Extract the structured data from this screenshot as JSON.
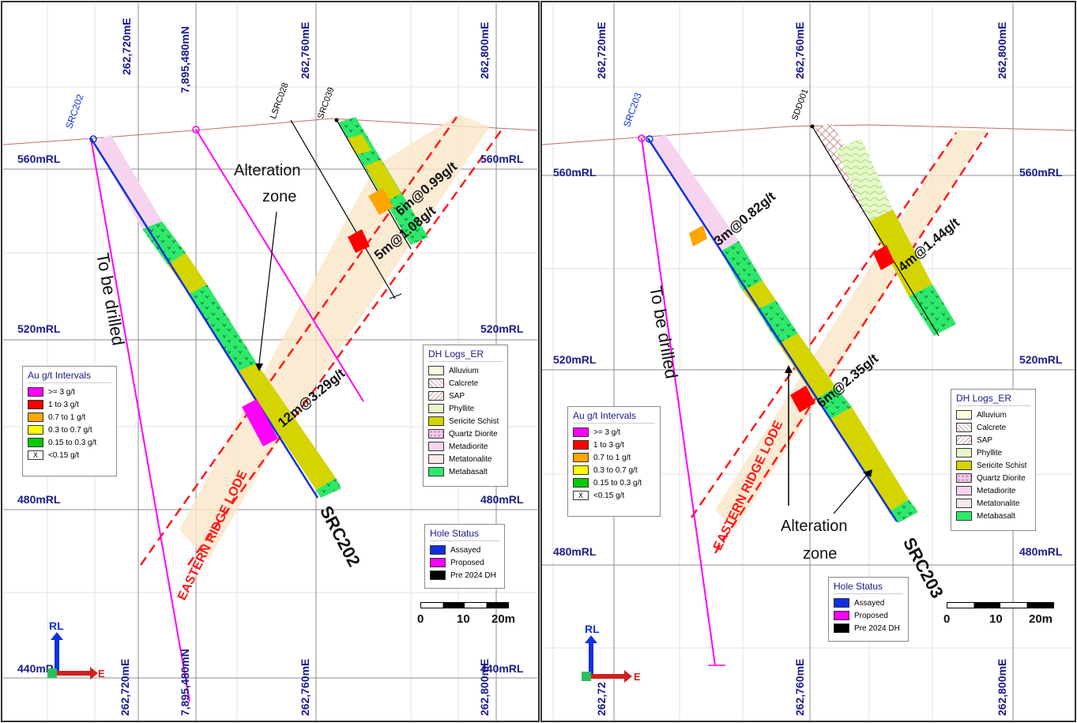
{
  "colors": {
    "axis_label": "#1a1a8c",
    "assayed": "#1030e0",
    "proposed": "#ff00ff",
    "pre2024": "#000000",
    "alteration_fill": "#fbe6c8",
    "lode_dash": "#ff1a1a",
    "sericite": "#d4d400",
    "metabasalt": "#2ee86b",
    "metadiorite": "#f6d4f0",
    "phyllite": "#e6f7c8",
    "au_3plus": "#ff00ff",
    "au_1to3": "#ff0000",
    "au_07to1": "#ffa500",
    "au_03to07": "#ffff00",
    "au_015to03": "#00cc00"
  },
  "left": {
    "top_easting": [
      "262,720mE",
      "7,895,480mN",
      "262,760mE",
      "262,800mE"
    ],
    "bottom_easting": [
      "262,720mE",
      "7,895,480mN",
      "262,760mE",
      "262,800mE"
    ],
    "rl_left": [
      "560mRL",
      "520mRL",
      "480mRL",
      "440mRL"
    ],
    "rl_right": [
      "560mRL",
      "520mRL",
      "480mRL",
      "440mRL"
    ],
    "hole_labels": {
      "src202_top": "SRC202",
      "lsrc028": "LSRC028",
      "src039": "SRC039",
      "src202_bottom": "SRC202"
    },
    "intercepts": [
      "6m@0.99g/t",
      "5m@1.08g/t",
      "12m@3.29g/t"
    ],
    "annotations": {
      "to_be_drilled": "To be drilled",
      "alteration": "Alteration",
      "zone": "zone",
      "lode": "EASTERN RIDGE LODE"
    },
    "scale": [
      "0",
      "10",
      "20m"
    ],
    "axes": {
      "rl": "RL",
      "e": "E"
    }
  },
  "right": {
    "top_easting": [
      "262,720mE",
      "262,760mE",
      "262,800mE"
    ],
    "bottom_easting": [
      "262,72",
      "262,760mE",
      "262,800mE"
    ],
    "rl_left": [
      "560mRL",
      "520mRL",
      "480mRL"
    ],
    "rl_right": [
      "560mRL",
      "520mRL",
      "480mRL"
    ],
    "hole_labels": {
      "src203_top": "SRC203",
      "sdd001": "SDD001",
      "src203_bottom": "SRC203"
    },
    "intercepts": [
      "3m@0.82g/t",
      "4m@1.44g/t",
      "6m@2.35g/t"
    ],
    "annotations": {
      "to_be_drilled": "To be drilled",
      "alteration": "Alteration",
      "zone": "zone",
      "lode": "EASTERN RIDGE LODE"
    },
    "scale": [
      "0",
      "10",
      "20m"
    ],
    "axes": {
      "rl": "RL",
      "e": "E"
    }
  },
  "legend_au": {
    "title": "Au g/t Intervals",
    "items": [
      ">= 3 g/t",
      "1 to 3 g/t",
      "0.7 to 1 g/t",
      "0.3 to 0.7 g/t",
      "0.15 to 0.3 g/t",
      "<0.15 g/t"
    ],
    "x_mark": "X"
  },
  "legend_dh": {
    "title": "DH Logs_ER",
    "items": [
      "Alluvium",
      "Calcrete",
      "SAP",
      "Phyllite",
      "Sericite Schist",
      "Quartz Diorite",
      "Metadiorite",
      "Metatonalite",
      "Metabasalt"
    ]
  },
  "legend_hole": {
    "title": "Hole Status",
    "items": [
      "Assayed",
      "Proposed",
      "Pre 2024 DH"
    ]
  }
}
